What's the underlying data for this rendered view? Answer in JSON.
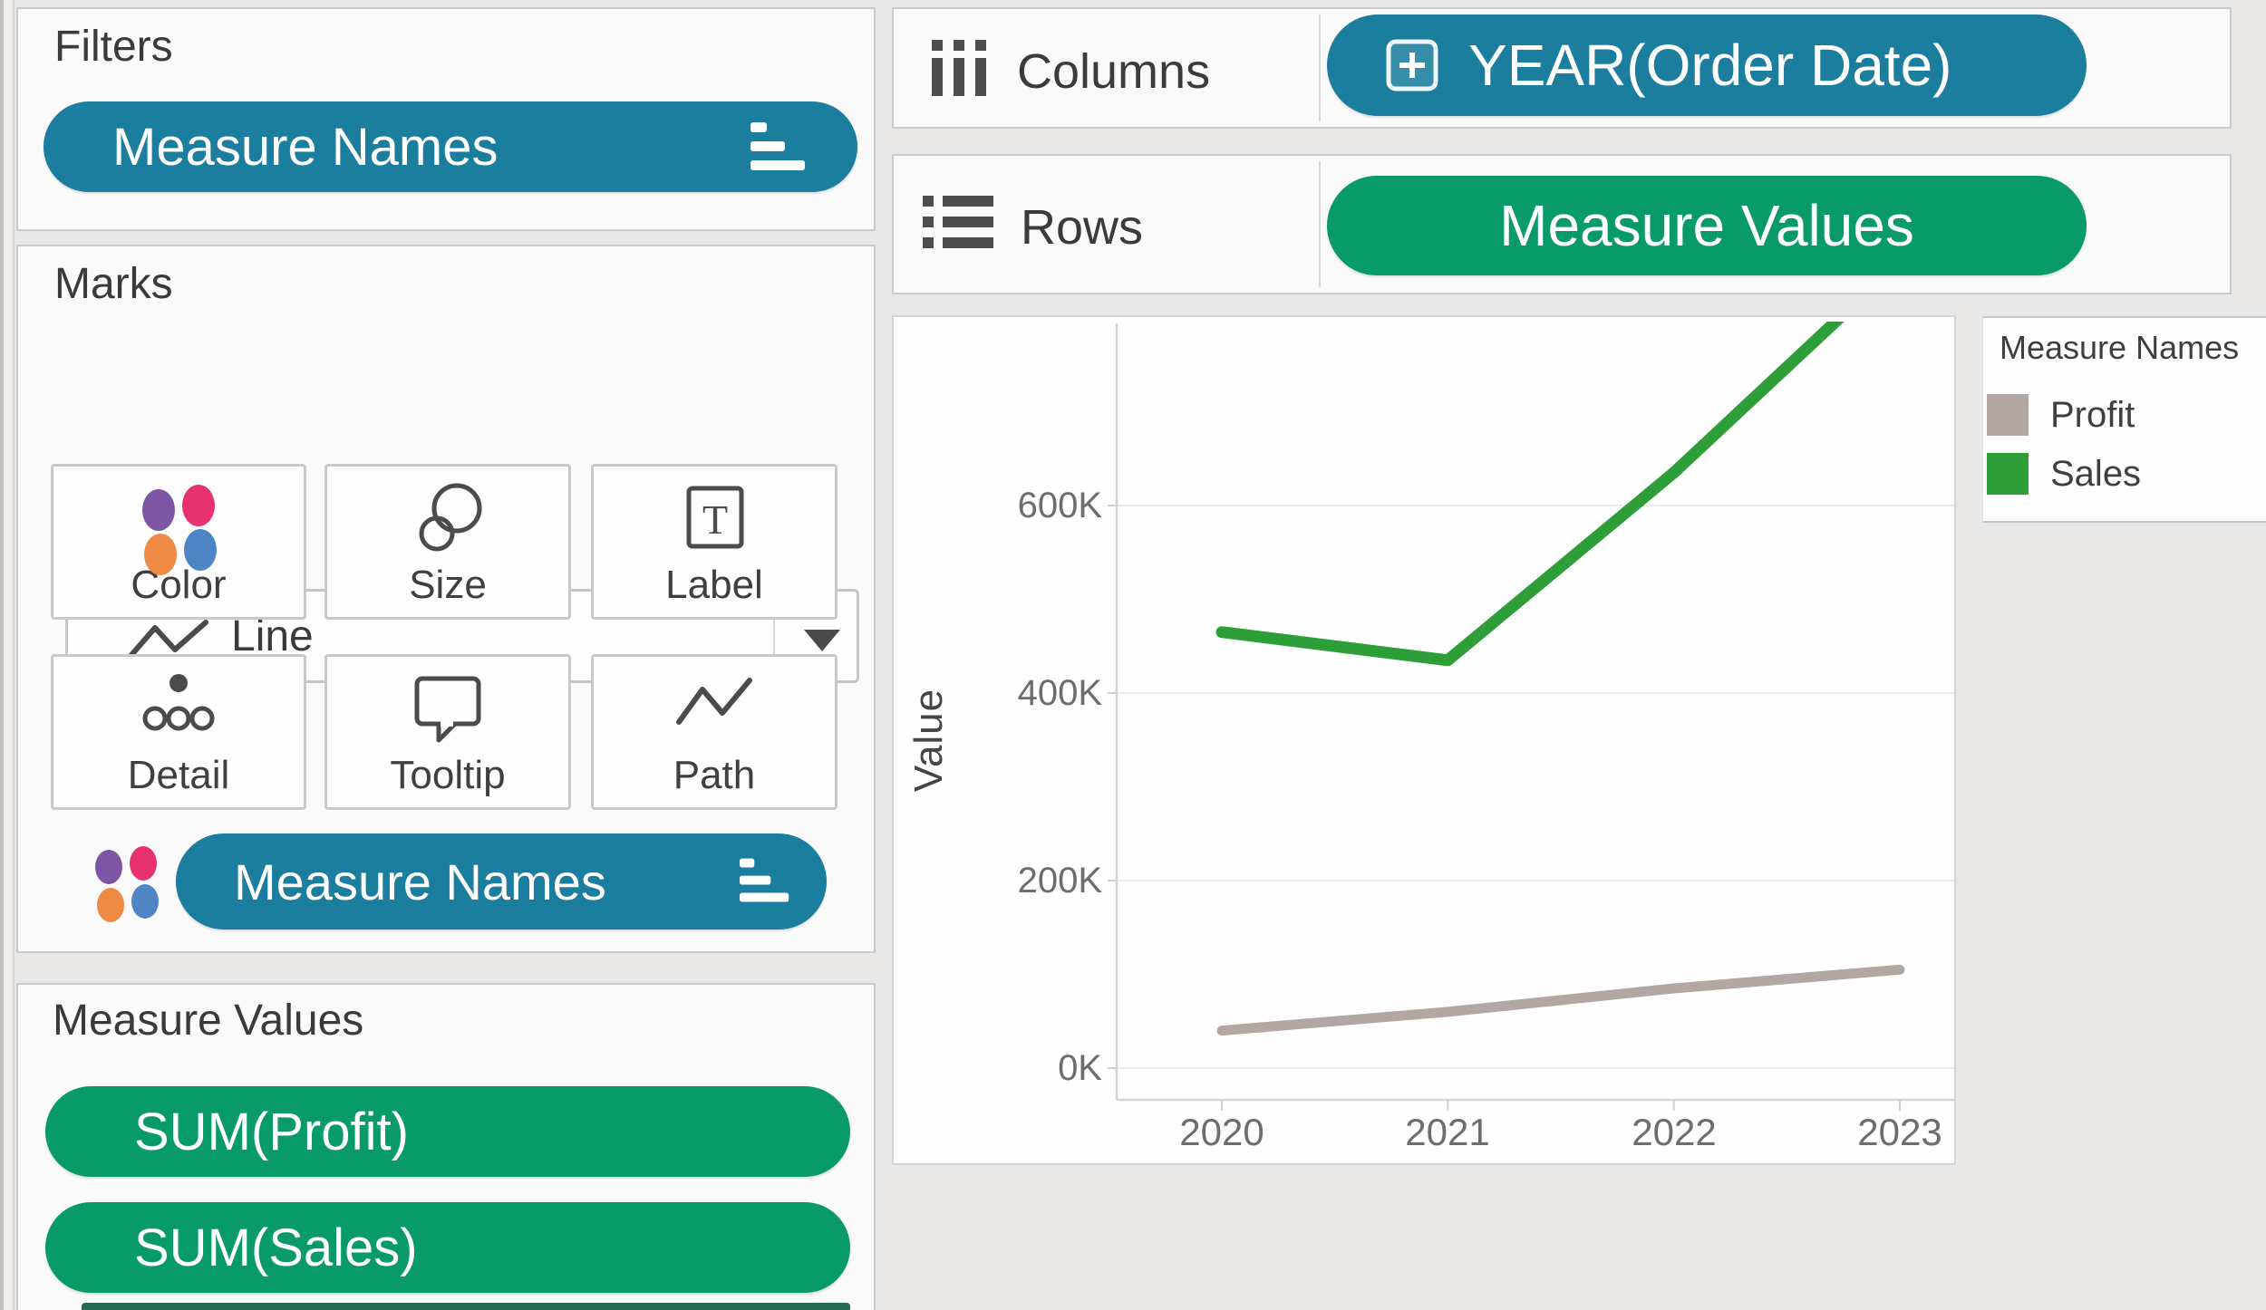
{
  "colors": {
    "teal_pill": "#1b7e9e",
    "green_pill": "#089b68",
    "sales_line": "#2e9e38",
    "profit_line": "#b4a7a3",
    "dot_purple": "#7d55a5",
    "dot_crimson": "#e8316f",
    "dot_orange": "#ef8a45",
    "dot_blue": "#4e86c5",
    "canvas_bg": "#e9e8e7"
  },
  "filters_card": {
    "title": "Filters",
    "pill": {
      "label": "Measure Names",
      "icon": "filter-icon"
    }
  },
  "marks_card": {
    "title": "Marks",
    "mark_type": {
      "label": "Line",
      "icon": "line-icon"
    },
    "buttons": [
      {
        "label": "Color",
        "icon": "color-icon"
      },
      {
        "label": "Size",
        "icon": "size-icon"
      },
      {
        "label": "Label",
        "icon": "label-icon"
      },
      {
        "label": "Detail",
        "icon": "detail-icon"
      },
      {
        "label": "Tooltip",
        "icon": "tooltip-icon"
      },
      {
        "label": "Path",
        "icon": "path-icon"
      }
    ],
    "pill": {
      "label": "Measure Names",
      "legend_icon": "color-legend-icon",
      "icon": "filter-icon"
    }
  },
  "measure_values_card": {
    "title": "Measure Values",
    "pills": [
      {
        "label": "SUM(Profit)"
      },
      {
        "label": "SUM(Sales)"
      }
    ]
  },
  "shelves": {
    "columns": {
      "label": "Columns",
      "pill": {
        "label": "YEAR(Order Date)",
        "icon": "plus-box-icon",
        "color": "#1b7e9e"
      }
    },
    "rows": {
      "label": "Rows",
      "pill": {
        "label": "Measure Values",
        "color": "#089b68"
      }
    }
  },
  "chart_data": {
    "type": "line",
    "title": "",
    "xlabel": "",
    "ylabel": "Value",
    "x": [
      2020,
      2021,
      2022,
      2023
    ],
    "x_labels": [
      "2020",
      "2021",
      "2022",
      "2023"
    ],
    "yticks_k": [
      0,
      200,
      400,
      600
    ],
    "ytick_labels": [
      "0K",
      "200K",
      "400K",
      "600K"
    ],
    "ylim_k": [
      -34,
      794
    ],
    "grid": true,
    "legend_position": "right",
    "series": [
      {
        "name": "Profit",
        "color": "#b4a7a3",
        "values_k": [
          40,
          60,
          85,
          105
        ]
      },
      {
        "name": "Sales",
        "color": "#2e9e38",
        "values_k": [
          465,
          435,
          635,
          860
        ],
        "note": "2023 segment rises past the top of the visible pane and is clipped at ~790K"
      }
    ]
  },
  "legend": {
    "title": "Measure Names",
    "items": [
      {
        "label": "Profit",
        "color": "#b4a7a3"
      },
      {
        "label": "Sales",
        "color": "#2e9e38"
      }
    ]
  }
}
